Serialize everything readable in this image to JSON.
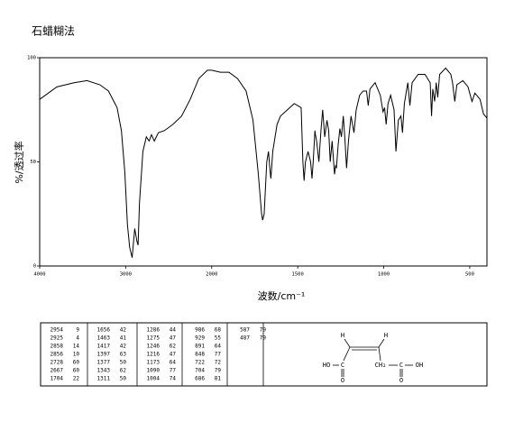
{
  "chart_data": {
    "type": "line",
    "title": "石蜡糊法",
    "xlabel": "波数/cm⁻¹",
    "ylabel": "%/透过率",
    "color": "#000000",
    "xlim": [
      4000,
      400
    ],
    "ylim": [
      0,
      100
    ],
    "xticks": [
      4000,
      3000,
      2000,
      1500,
      1000,
      500
    ],
    "yticks": [
      0,
      50,
      100
    ],
    "x": [
      4000,
      3800,
      3600,
      3450,
      3300,
      3200,
      3100,
      3050,
      3010,
      2980,
      2954,
      2925,
      2895,
      2870,
      2856,
      2840,
      2800,
      2760,
      2728,
      2700,
      2667,
      2620,
      2550,
      2450,
      2350,
      2250,
      2150,
      2050,
      2000,
      1950,
      1900,
      1850,
      1800,
      1760,
      1730,
      1710,
      1704,
      1695,
      1680,
      1670,
      1660,
      1656,
      1645,
      1620,
      1600,
      1560,
      1520,
      1480,
      1470,
      1463,
      1455,
      1440,
      1425,
      1417,
      1410,
      1400,
      1397,
      1390,
      1377,
      1365,
      1355,
      1343,
      1330,
      1320,
      1311,
      1300,
      1286,
      1280,
      1275,
      1265,
      1255,
      1246,
      1235,
      1225,
      1216,
      1205,
      1190,
      1173,
      1160,
      1140,
      1120,
      1100,
      1090,
      1080,
      1050,
      1020,
      1004,
      995,
      986,
      975,
      960,
      940,
      929,
      915,
      900,
      891,
      880,
      860,
      848,
      835,
      800,
      760,
      730,
      722,
      715,
      704,
      695,
      686,
      675,
      640,
      610,
      600,
      587,
      575,
      540,
      510,
      487,
      470,
      440,
      420,
      400
    ],
    "values": [
      80,
      86,
      88,
      89,
      87,
      84,
      76,
      65,
      45,
      20,
      9,
      4,
      18,
      12,
      10,
      30,
      55,
      62,
      60,
      63,
      60,
      64,
      65,
      68,
      72,
      80,
      90,
      94,
      94,
      93,
      93,
      90,
      84,
      70,
      45,
      25,
      22,
      25,
      50,
      55,
      45,
      42,
      55,
      68,
      72,
      75,
      78,
      76,
      50,
      41,
      50,
      55,
      50,
      42,
      50,
      65,
      63,
      60,
      50,
      65,
      75,
      62,
      70,
      65,
      50,
      60,
      44,
      48,
      47,
      58,
      66,
      62,
      72,
      60,
      47,
      60,
      72,
      64,
      75,
      82,
      84,
      84,
      77,
      85,
      88,
      82,
      74,
      76,
      68,
      78,
      82,
      75,
      55,
      70,
      72,
      64,
      78,
      88,
      77,
      88,
      92,
      92,
      88,
      72,
      85,
      79,
      88,
      81,
      92,
      95,
      92,
      88,
      79,
      87,
      89,
      86,
      79,
      83,
      80,
      73,
      71
    ]
  },
  "peak_table": {
    "columns": [
      [
        [
          2954,
          9
        ],
        [
          2925,
          4
        ],
        [
          2858,
          14
        ],
        [
          2856,
          10
        ],
        [
          2728,
          60
        ],
        [
          2667,
          60
        ],
        [
          1704,
          22
        ]
      ],
      [
        [
          1656,
          42
        ],
        [
          1463,
          41
        ],
        [
          1417,
          42
        ],
        [
          1397,
          63
        ],
        [
          1377,
          50
        ],
        [
          1343,
          62
        ],
        [
          1311,
          50
        ]
      ],
      [
        [
          1286,
          44
        ],
        [
          1275,
          47
        ],
        [
          1246,
          62
        ],
        [
          1216,
          47
        ],
        [
          1173,
          64
        ],
        [
          1090,
          77
        ],
        [
          1004,
          74
        ]
      ],
      [
        [
          986,
          68
        ],
        [
          929,
          55
        ],
        [
          891,
          64
        ],
        [
          848,
          77
        ],
        [
          722,
          72
        ],
        [
          704,
          79
        ],
        [
          686,
          81
        ]
      ],
      [
        [
          587,
          79
        ],
        [
          487,
          79
        ]
      ]
    ]
  },
  "structure": {
    "atoms": [
      "H",
      "H",
      "HO",
      "C",
      "O",
      "CH₂",
      "C",
      "O",
      "OH"
    ]
  }
}
